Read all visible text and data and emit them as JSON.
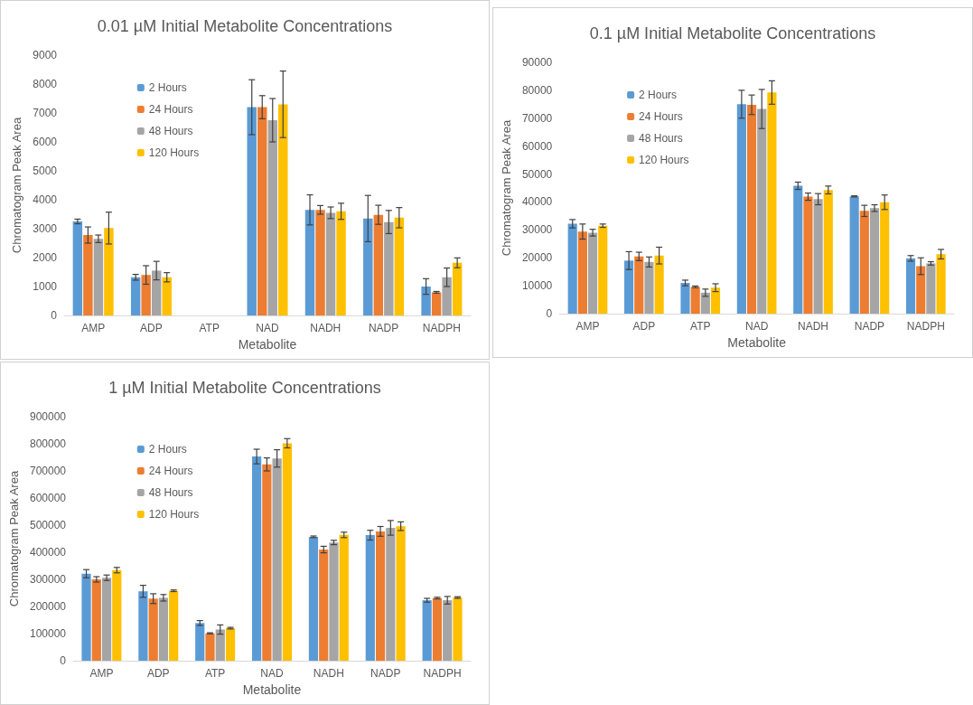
{
  "chart_data": [
    {
      "type": "bar",
      "title": "0.01 µM Initial Metabolite Concentrations",
      "xlabel": "Metabolite",
      "ylabel": "Chromatogram Peak Area",
      "categories": [
        "AMP",
        "ADP",
        "ATP",
        "NAD",
        "NADH",
        "NADP",
        "NADPH"
      ],
      "series": [
        {
          "name": "2 Hours",
          "color": "#5b9bd5",
          "values": [
            3250,
            1320,
            null,
            7200,
            3650,
            3350,
            1000
          ],
          "errors": [
            80,
            100,
            null,
            950,
            520,
            800,
            270
          ]
        },
        {
          "name": "24 Hours",
          "color": "#ed7d31",
          "values": [
            2780,
            1400,
            null,
            7200,
            3650,
            3480,
            800
          ],
          "errors": [
            280,
            320,
            null,
            400,
            150,
            330,
            30
          ]
        },
        {
          "name": "48 Hours",
          "color": "#a5a5a5",
          "values": [
            2650,
            1550,
            null,
            6750,
            3550,
            3230,
            1320
          ],
          "errors": [
            130,
            320,
            null,
            750,
            200,
            400,
            320
          ]
        },
        {
          "name": "120 Hours",
          "color": "#ffc000",
          "values": [
            3020,
            1320,
            null,
            7300,
            3600,
            3380,
            1820
          ],
          "errors": [
            550,
            160,
            null,
            1150,
            280,
            350,
            170
          ]
        }
      ],
      "ylim": [
        0,
        9000
      ],
      "yticks": [
        0,
        1000,
        2000,
        3000,
        4000,
        5000,
        6000,
        7000,
        8000,
        9000
      ],
      "grid": false,
      "legend": "top left"
    },
    {
      "type": "bar",
      "title": "0.1 µM Initial Metabolite Concentrations",
      "xlabel": "Metabolite",
      "ylabel": "Chromatogram Peak Area",
      "categories": [
        "AMP",
        "ADP",
        "ATP",
        "NAD",
        "NADH",
        "NADP",
        "NADPH"
      ],
      "series": [
        {
          "name": "2 Hours",
          "color": "#5b9bd5",
          "values": [
            32200,
            19000,
            11000,
            75000,
            45800,
            42000,
            19800
          ],
          "errors": [
            1500,
            3200,
            1000,
            5000,
            1300,
            200,
            1000
          ]
        },
        {
          "name": "24 Hours",
          "color": "#ed7d31",
          "values": [
            29400,
            20500,
            9600,
            74800,
            41900,
            36800,
            17000
          ],
          "errors": [
            2700,
            1500,
            300,
            3500,
            1300,
            2000,
            3000
          ]
        },
        {
          "name": "48 Hours",
          "color": "#a5a5a5",
          "values": [
            29000,
            18500,
            7500,
            73300,
            41000,
            37800,
            18000
          ],
          "errors": [
            1200,
            1800,
            1300,
            7000,
            2000,
            1200,
            600
          ]
        },
        {
          "name": "120 Hours",
          "color": "#ffc000",
          "values": [
            31500,
            20800,
            9300,
            79200,
            44300,
            39900,
            21300
          ],
          "errors": [
            600,
            3000,
            1400,
            4200,
            1400,
            2600,
            1700
          ]
        }
      ],
      "ylim": [
        0,
        90000
      ],
      "yticks": [
        0,
        10000,
        20000,
        30000,
        40000,
        50000,
        60000,
        70000,
        80000,
        90000
      ],
      "grid": false,
      "legend": "top left"
    },
    {
      "type": "bar",
      "title": "1 µM Initial Metabolite Concentrations",
      "xlabel": "Metabolite",
      "ylabel": "Chromatogram Peak Area",
      "categories": [
        "AMP",
        "ADP",
        "ATP",
        "NAD",
        "NADH",
        "NADP",
        "NADPH"
      ],
      "series": [
        {
          "name": "2 Hours",
          "color": "#5b9bd5",
          "values": [
            321000,
            256000,
            139000,
            753000,
            457000,
            463000,
            223000
          ],
          "errors": [
            15000,
            22000,
            9000,
            27000,
            3000,
            18000,
            7000
          ]
        },
        {
          "name": "24 Hours",
          "color": "#ed7d31",
          "values": [
            300000,
            229000,
            101000,
            724000,
            410000,
            477000,
            231000
          ],
          "errors": [
            10000,
            18000,
            2000,
            24000,
            12000,
            18000,
            3000
          ]
        },
        {
          "name": "48 Hours",
          "color": "#a5a5a5",
          "values": [
            306000,
            232000,
            115000,
            746000,
            436000,
            490000,
            223000
          ],
          "errors": [
            10000,
            12000,
            17000,
            32000,
            8000,
            27000,
            14000
          ]
        },
        {
          "name": "120 Hours",
          "color": "#ffc000",
          "values": [
            334000,
            258000,
            120000,
            802000,
            464000,
            496000,
            233000
          ],
          "errors": [
            10000,
            3000,
            3000,
            17000,
            10000,
            16000,
            3000
          ]
        }
      ],
      "ylim": [
        0,
        900000
      ],
      "yticks": [
        0,
        100000,
        200000,
        300000,
        400000,
        500000,
        600000,
        700000,
        800000,
        900000
      ],
      "grid": false,
      "legend": "top left"
    }
  ]
}
